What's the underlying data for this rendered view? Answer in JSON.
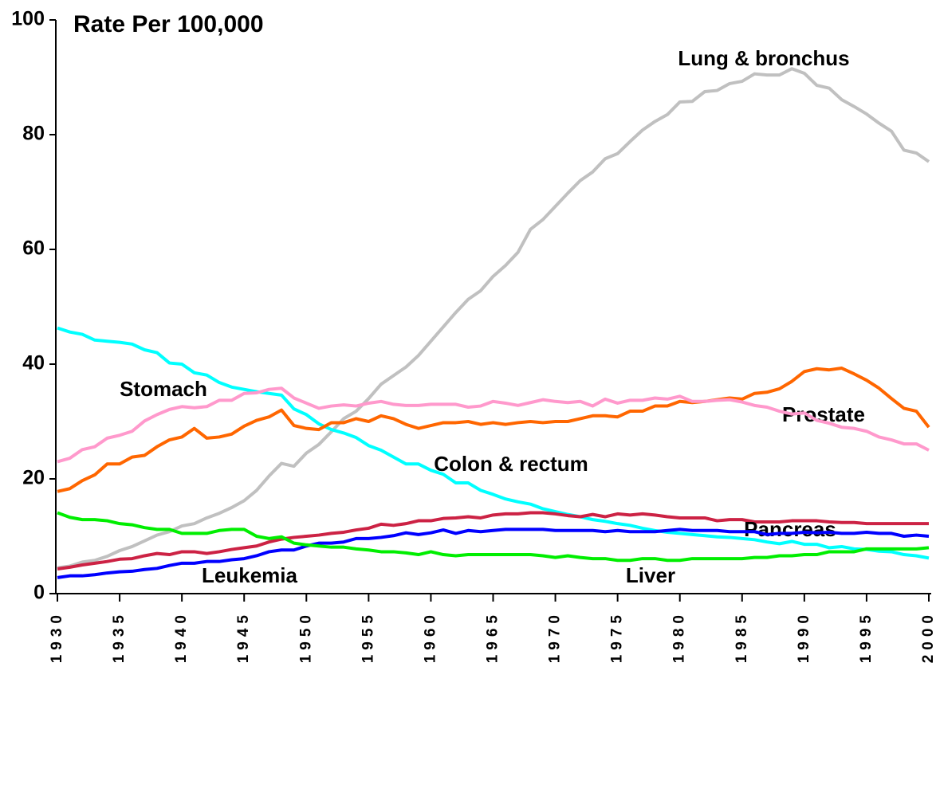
{
  "chart_data": {
    "type": "line",
    "title": "Rate Per 100,000",
    "x": [
      1930,
      1931,
      1932,
      1933,
      1934,
      1935,
      1936,
      1937,
      1938,
      1939,
      1940,
      1941,
      1942,
      1943,
      1944,
      1945,
      1946,
      1947,
      1948,
      1949,
      1950,
      1951,
      1952,
      1953,
      1954,
      1955,
      1956,
      1957,
      1958,
      1959,
      1960,
      1961,
      1962,
      1963,
      1964,
      1965,
      1966,
      1967,
      1968,
      1969,
      1970,
      1971,
      1972,
      1973,
      1974,
      1975,
      1976,
      1977,
      1978,
      1979,
      1980,
      1981,
      1982,
      1983,
      1984,
      1985,
      1986,
      1987,
      1988,
      1989,
      1990,
      1991,
      1992,
      1993,
      1994,
      1995,
      1996,
      1997,
      1998,
      1999,
      2000
    ],
    "series": [
      {
        "name": "Lung & bronchus",
        "color": "#c0c0c0",
        "values": [
          4.5,
          4.8,
          5.5,
          5.8,
          6.5,
          7.5,
          8.2,
          9.2,
          10.2,
          10.8,
          11.8,
          12.2,
          13.2,
          14,
          15,
          16.2,
          18,
          20.5,
          22.7,
          22.2,
          24.5,
          26,
          28.2,
          30.5,
          31.8,
          34,
          36.5,
          38,
          39.5,
          41.5,
          44,
          46.5,
          49,
          51.3,
          52.8,
          55.3,
          57.2,
          59.5,
          63.5,
          65.2,
          67.5,
          69.8,
          72,
          73.5,
          75.8,
          76.7,
          78.8,
          80.8,
          82.3,
          83.5,
          85.7,
          85.8,
          87.5,
          87.7,
          88.9,
          89.3,
          90.6,
          90.4,
          90.4,
          91.5,
          90.7,
          88.6,
          88.1,
          86.1,
          84.9,
          83.6,
          82,
          80.6,
          77.3,
          76.8,
          75.3
        ]
      },
      {
        "name": "Stomach",
        "color": "#00ffff",
        "values": [
          46.3,
          45.6,
          45.2,
          44.2,
          44,
          43.8,
          43.5,
          42.5,
          42,
          40.2,
          40,
          38.5,
          38.1,
          36.8,
          36,
          35.6,
          35.2,
          34.9,
          34.6,
          32.2,
          31.2,
          29.6,
          28.6,
          28,
          27.2,
          25.8,
          25,
          23.8,
          22.6,
          22.6,
          21.5,
          20.8,
          19.3,
          19.3,
          18,
          17.3,
          16.5,
          16,
          15.6,
          14.8,
          14.3,
          13.8,
          13.4,
          12.9,
          12.6,
          12.2,
          11.9,
          11.4,
          11,
          10.7,
          10.5,
          10.3,
          10.1,
          9.9,
          9.8,
          9.6,
          9.4,
          9,
          8.7,
          9.1,
          8.6,
          8.6,
          8,
          8.2,
          7.8,
          7.7,
          7.4,
          7.3,
          6.8,
          6.6,
          6.2
        ]
      },
      {
        "name": "Prostate",
        "color": "#ff6600",
        "values": [
          17.8,
          18.3,
          19.7,
          20.7,
          22.6,
          22.6,
          23.8,
          24.1,
          25.6,
          26.8,
          27.3,
          28.8,
          27.1,
          27.3,
          27.8,
          29.2,
          30.2,
          30.8,
          32,
          29.3,
          28.8,
          28.6,
          29.8,
          29.8,
          30.5,
          30,
          31,
          30.5,
          29.5,
          28.8,
          29.3,
          29.8,
          29.8,
          30,
          29.5,
          29.8,
          29.5,
          29.8,
          30,
          29.8,
          30,
          30,
          30.5,
          31,
          31,
          30.8,
          31.8,
          31.8,
          32.7,
          32.7,
          33.5,
          33.3,
          33.5,
          33.8,
          34.1,
          33.9,
          34.9,
          35.1,
          35.7,
          37,
          38.7,
          39.2,
          39,
          39.3,
          38.3,
          37.2,
          35.8,
          34,
          32.3,
          31.8,
          29
        ]
      },
      {
        "name": "Colon & rectum",
        "color": "#ff99cc",
        "values": [
          23,
          23.6,
          25.1,
          25.6,
          27.1,
          27.6,
          28.3,
          30.1,
          31.2,
          32.1,
          32.6,
          32.4,
          32.6,
          33.7,
          33.7,
          34.9,
          35,
          35.6,
          35.8,
          34.1,
          33.2,
          32.3,
          32.7,
          32.9,
          32.7,
          33.2,
          33.5,
          33,
          32.8,
          32.8,
          33,
          33,
          33,
          32.5,
          32.7,
          33.5,
          33.2,
          32.8,
          33.3,
          33.8,
          33.5,
          33.3,
          33.5,
          32.7,
          33.9,
          33.2,
          33.7,
          33.7,
          34.1,
          33.9,
          34.4,
          33.5,
          33.5,
          33.7,
          33.8,
          33.4,
          32.8,
          32.5,
          31.8,
          31.3,
          31.5,
          30.2,
          29.7,
          29,
          28.8,
          28.3,
          27.3,
          26.8,
          26.1,
          26.1,
          25
        ]
      },
      {
        "name": "Pancreas",
        "color": "#cc2244",
        "values": [
          4.3,
          4.6,
          5,
          5.3,
          5.6,
          6,
          6.1,
          6.6,
          7,
          6.8,
          7.3,
          7.3,
          7,
          7.3,
          7.7,
          8,
          8.3,
          9,
          9.5,
          9.8,
          10,
          10.2,
          10.5,
          10.7,
          11.1,
          11.4,
          12.1,
          11.9,
          12.2,
          12.7,
          12.7,
          13.1,
          13.2,
          13.4,
          13.2,
          13.7,
          13.9,
          13.9,
          14.1,
          14.1,
          13.9,
          13.6,
          13.4,
          13.8,
          13.4,
          13.9,
          13.7,
          13.9,
          13.7,
          13.4,
          13.2,
          13.2,
          13.2,
          12.7,
          12.9,
          12.9,
          12.5,
          12.5,
          12.5,
          12.7,
          12.7,
          12.7,
          12.5,
          12.4,
          12.4,
          12.2,
          12.2,
          12.2,
          12.2,
          12.2,
          12.2
        ]
      },
      {
        "name": "Leukemia",
        "color": "#0000ff",
        "values": [
          2.8,
          3.1,
          3.1,
          3.3,
          3.6,
          3.8,
          3.9,
          4.2,
          4.4,
          4.9,
          5.3,
          5.3,
          5.6,
          5.6,
          5.9,
          6.1,
          6.6,
          7.3,
          7.6,
          7.6,
          8.3,
          8.8,
          8.8,
          9,
          9.6,
          9.6,
          9.8,
          10.1,
          10.6,
          10.3,
          10.6,
          11.1,
          10.5,
          11,
          10.8,
          11,
          11.2,
          11.2,
          11.2,
          11.2,
          11,
          11,
          11,
          11,
          10.8,
          11,
          10.8,
          10.8,
          10.8,
          11,
          11.2,
          11,
          11,
          11,
          10.8,
          10.8,
          10.8,
          10.3,
          10.5,
          10.5,
          10.7,
          10.6,
          10.7,
          10.5,
          10.5,
          10.7,
          10.5,
          10.5,
          10,
          10.2,
          10
        ]
      },
      {
        "name": "Liver",
        "color": "#00ee00",
        "values": [
          14.1,
          13.3,
          12.9,
          12.9,
          12.7,
          12.2,
          12,
          11.5,
          11.2,
          11.2,
          10.5,
          10.5,
          10.5,
          11,
          11.2,
          11.2,
          10,
          9.6,
          9.9,
          8.8,
          8.5,
          8.3,
          8.1,
          8.1,
          7.8,
          7.6,
          7.3,
          7.3,
          7.1,
          6.8,
          7.3,
          6.8,
          6.6,
          6.8,
          6.8,
          6.8,
          6.8,
          6.8,
          6.8,
          6.6,
          6.3,
          6.6,
          6.3,
          6.1,
          6.1,
          5.8,
          5.8,
          6.1,
          6.1,
          5.8,
          5.8,
          6.1,
          6.1,
          6.1,
          6.1,
          6.1,
          6.3,
          6.3,
          6.6,
          6.6,
          6.8,
          6.8,
          7.3,
          7.3,
          7.3,
          7.8,
          7.8,
          7.8,
          7.8,
          7.8,
          8
        ]
      }
    ],
    "xlim": [
      1930,
      2000
    ],
    "xticks": [
      1930,
      1935,
      1940,
      1945,
      1950,
      1955,
      1960,
      1965,
      1970,
      1975,
      1980,
      1985,
      1990,
      1995,
      2000
    ],
    "ylim": [
      0,
      100
    ],
    "yticks": [
      0,
      20,
      40,
      60,
      80,
      100
    ],
    "grid": false
  }
}
